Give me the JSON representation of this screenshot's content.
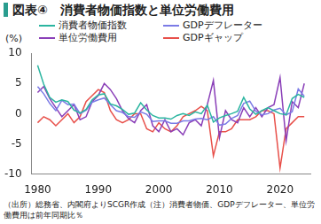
{
  "chart_data": {
    "type": "line",
    "title": "図表④　消費者物価指数と単位労働費用",
    "ylabel": "(%)",
    "note": "（出所）総務省、内閣府よりSCGR作成（注）消費者物価、GDPデフレーター、単位労働費用は前年同期比％",
    "x": [
      1980,
      1981,
      1982,
      1983,
      1984,
      1985,
      1986,
      1987,
      1988,
      1989,
      1990,
      1991,
      1992,
      1993,
      1994,
      1995,
      1996,
      1997,
      1998,
      1999,
      2000,
      2001,
      2002,
      2003,
      2004,
      2005,
      2006,
      2007,
      2008,
      2009,
      2010,
      2011,
      2012,
      2013,
      2014,
      2015,
      2016,
      2017,
      2018,
      2019,
      2020,
      2021,
      2022,
      2023,
      2024
    ],
    "series": [
      {
        "name": "消費者物価指数",
        "color": "#2bb5a0",
        "values": [
          8.0,
          4.9,
          2.7,
          1.9,
          2.3,
          2.0,
          0.6,
          0.1,
          0.7,
          2.3,
          3.1,
          3.3,
          1.6,
          1.3,
          0.7,
          -0.1,
          0.1,
          1.8,
          0.6,
          -0.3,
          -0.7,
          -0.7,
          -0.9,
          -0.3,
          0.0,
          -0.3,
          0.3,
          0.0,
          1.4,
          -1.4,
          -0.7,
          -0.3,
          0.0,
          0.4,
          2.7,
          0.8,
          -0.1,
          0.5,
          1.0,
          0.5,
          0.0,
          -0.2,
          2.5,
          3.2,
          2.7
        ]
      },
      {
        "name": "GDPデフレーター",
        "color": "#7b7be6",
        "values": [
          4.5,
          3.3,
          1.7,
          0.5,
          2.2,
          1.5,
          1.6,
          0.0,
          0.6,
          1.9,
          2.3,
          2.6,
          1.5,
          0.5,
          0.2,
          -0.5,
          -0.6,
          0.3,
          -0.1,
          -1.3,
          -1.2,
          -1.2,
          -1.6,
          -1.6,
          -1.2,
          -1.2,
          -0.9,
          -0.8,
          -1.0,
          -0.5,
          -1.9,
          -1.7,
          -0.8,
          -0.3,
          1.7,
          2.1,
          0.4,
          -0.2,
          0.0,
          0.6,
          0.9,
          -0.2,
          0.3,
          4.1,
          2.9
        ]
      },
      {
        "name": "単位労働費用",
        "color": "#8a3fb8",
        "values": [
          3.5,
          4.5,
          2.5,
          1.0,
          -0.5,
          0.5,
          1.5,
          -1.0,
          -0.5,
          2.0,
          3.0,
          5.0,
          4.0,
          2.5,
          0.5,
          -0.8,
          -1.5,
          0.5,
          1.5,
          -2.0,
          -3.0,
          -1.0,
          -3.0,
          -2.5,
          -3.5,
          -1.5,
          -1.0,
          -2.0,
          1.5,
          5.5,
          -4.0,
          0.5,
          -1.0,
          -1.5,
          1.0,
          -0.5,
          1.0,
          -0.5,
          1.0,
          1.5,
          6.0,
          -4.5,
          2.0,
          1.0,
          5.0
        ]
      },
      {
        "name": "GDPギャップ",
        "color": "#e8504a",
        "values": [
          -1.5,
          -0.5,
          -1.0,
          -2.0,
          -1.0,
          0.0,
          -1.5,
          -0.5,
          2.0,
          3.0,
          4.0,
          3.5,
          0.5,
          -1.0,
          -1.5,
          -1.0,
          0.0,
          0.0,
          -2.5,
          -3.0,
          -1.5,
          -2.5,
          -3.0,
          -2.0,
          -0.5,
          0.0,
          0.5,
          1.2,
          0.5,
          -7.0,
          -3.0,
          -3.0,
          -2.5,
          -1.0,
          -1.0,
          -1.0,
          -0.5,
          0.5,
          0.5,
          0.0,
          -9.0,
          -2.5,
          -1.5,
          -0.5,
          -0.5
        ]
      }
    ],
    "xlim": [
      1979,
      2025
    ],
    "xticks": [
      1980,
      1990,
      2000,
      2010,
      2020
    ],
    "ylim": [
      -10,
      10
    ],
    "yticks": [
      -10,
      -5,
      0,
      5,
      10
    ],
    "grid": false,
    "legend": "top"
  }
}
